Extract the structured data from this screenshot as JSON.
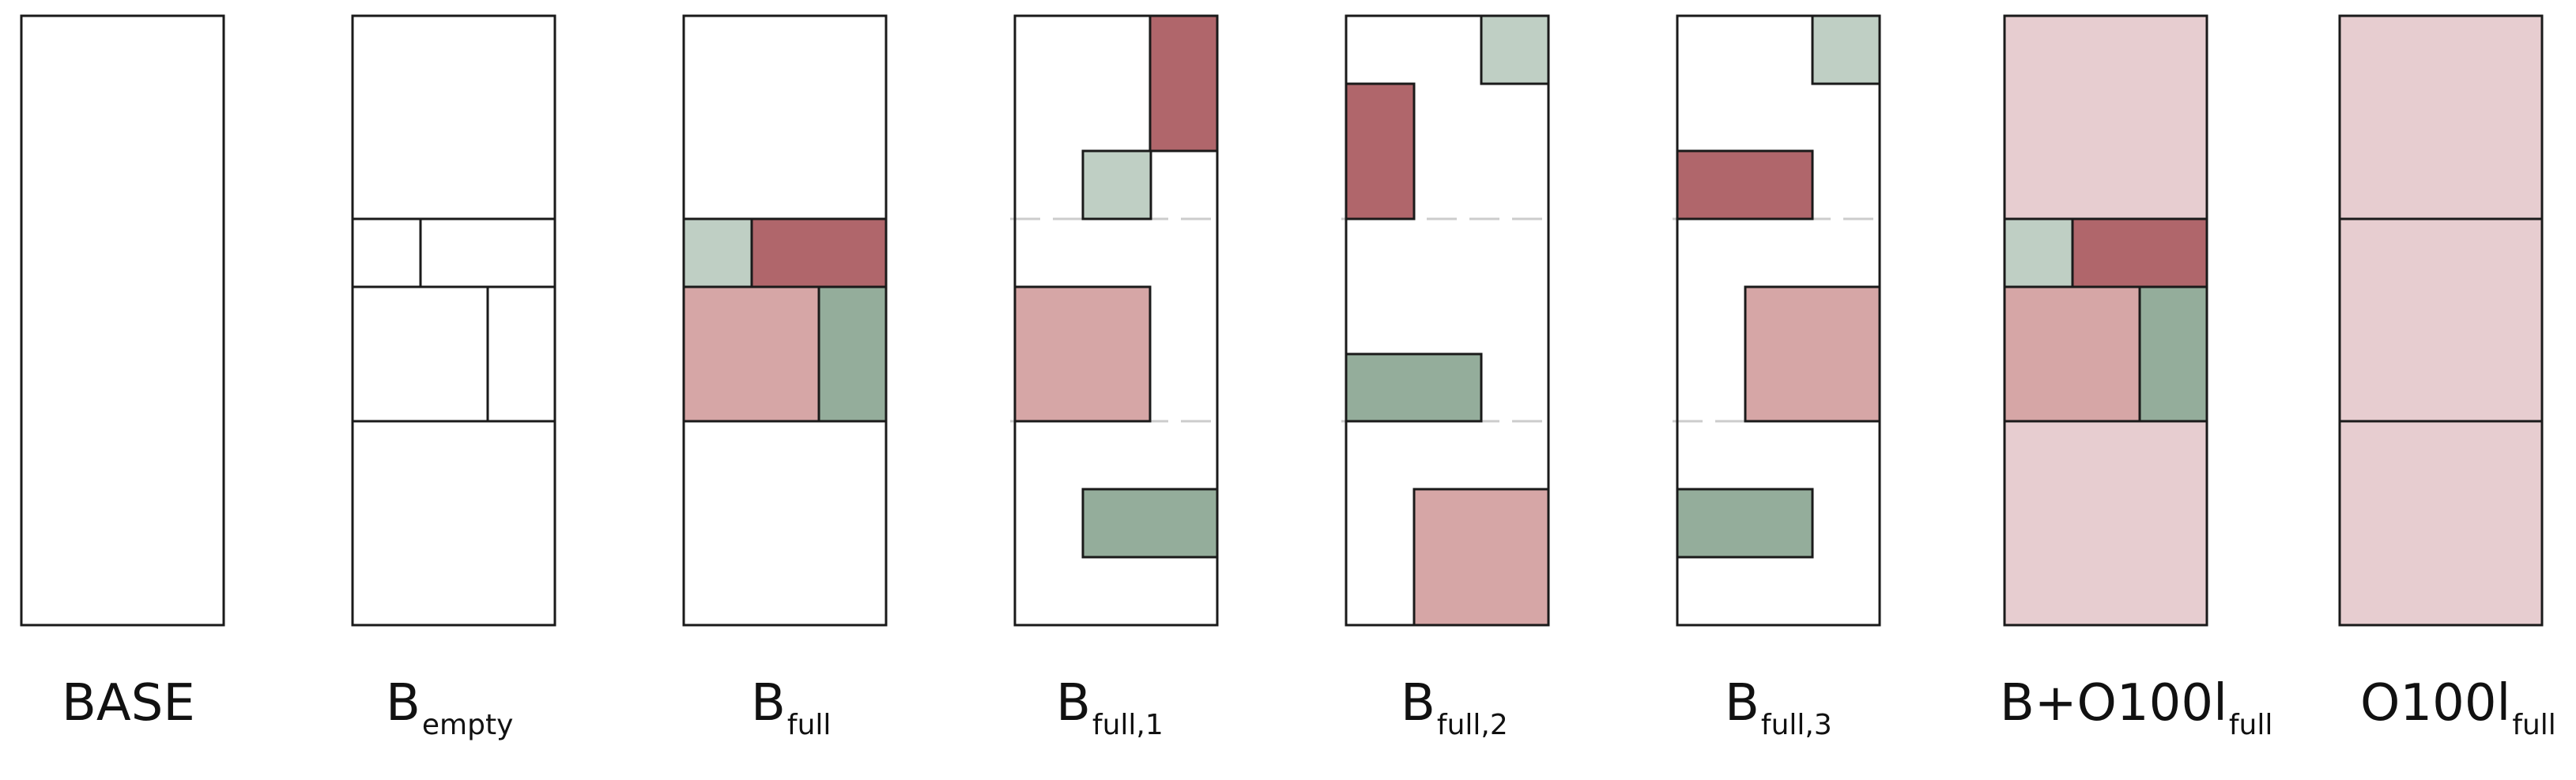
{
  "colors": {
    "outline": "#1a1a1a",
    "dashed": "#cccccc",
    "dark_red": "#b0666b",
    "pink": "#d6a6a6",
    "pale_pink": "#e7cdd0",
    "light_green": "#bfcfc4",
    "green": "#94ad9b"
  },
  "panels": [
    {
      "id": "base",
      "label": "BASE",
      "sub": ""
    },
    {
      "id": "b-empty",
      "label": "B",
      "sub": "empty"
    },
    {
      "id": "b-full",
      "label": "B",
      "sub": "full"
    },
    {
      "id": "b-full-1",
      "label": "B",
      "sub": "full,1"
    },
    {
      "id": "b-full-2",
      "label": "B",
      "sub": "full,2"
    },
    {
      "id": "b-full-3",
      "label": "B",
      "sub": "full,3"
    },
    {
      "id": "b-o100l",
      "label": "B+O100l",
      "sub": "full"
    },
    {
      "id": "o100l",
      "label": "O100l",
      "sub": "full"
    }
  ]
}
